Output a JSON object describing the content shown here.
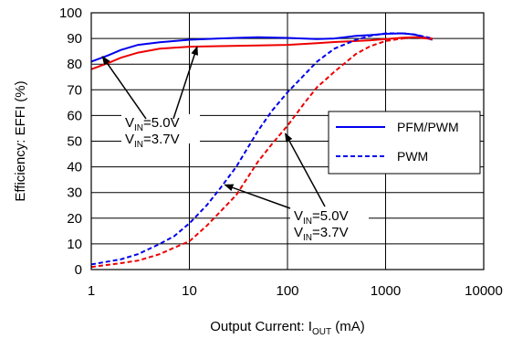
{
  "chart_data": {
    "type": "line",
    "x_scale": "log",
    "xlim": [
      1,
      10000
    ],
    "ylim": [
      0,
      100
    ],
    "grid": true,
    "xticks": [
      "1",
      "10",
      "100",
      "1000",
      "10000"
    ],
    "yticks": [
      "0",
      "10",
      "20",
      "30",
      "40",
      "50",
      "60",
      "70",
      "80",
      "90",
      "100"
    ],
    "xlabel": {
      "main": "Output Current: I",
      "sub": "OUT",
      "unit": " (mA)"
    },
    "ylabel": "Efficiency: EFFI (%)",
    "legend": {
      "placement": "right",
      "entries": [
        {
          "label": "PFM/PWM",
          "style": "solid"
        },
        {
          "label": "PWM",
          "style": "dashed"
        }
      ]
    },
    "series": [
      {
        "mode": "PFM/PWM",
        "vin": "5.0V",
        "color": "#0000ee",
        "style": "solid",
        "x": [
          1,
          1.5,
          2,
          3,
          5,
          10,
          20,
          50,
          100,
          200,
          300,
          500,
          700,
          1000,
          1500,
          2000,
          3000
        ],
        "y": [
          81,
          83.5,
          85.5,
          87.5,
          88.5,
          89.5,
          90,
          90.5,
          90.2,
          89.8,
          90,
          91,
          91.3,
          91.8,
          92,
          91.5,
          89.5
        ]
      },
      {
        "mode": "PFM/PWM",
        "vin": "3.7V",
        "color": "#ee0000",
        "style": "solid",
        "x": [
          1,
          1.5,
          2,
          3,
          5,
          10,
          20,
          50,
          100,
          200,
          300,
          500,
          700,
          1000,
          1500,
          2000,
          3000
        ],
        "y": [
          78,
          80.5,
          82.5,
          84.5,
          86,
          86.8,
          87,
          87.3,
          87.5,
          88.2,
          88.6,
          89,
          89.3,
          89.8,
          90.3,
          90.5,
          89.8
        ]
      },
      {
        "mode": "PWM",
        "vin": "5.0V",
        "color": "#0000ee",
        "style": "dashed",
        "x": [
          1,
          2,
          3,
          5,
          7,
          10,
          15,
          20,
          30,
          50,
          70,
          100,
          150,
          200,
          300,
          500,
          700,
          1000,
          1500,
          2000,
          3000
        ],
        "y": [
          2,
          4,
          6,
          10,
          13,
          18,
          25,
          31,
          40,
          54,
          62,
          69,
          76,
          81,
          86,
          89.5,
          91,
          92,
          92,
          91.5,
          90
        ]
      },
      {
        "mode": "PWM",
        "vin": "3.7V",
        "color": "#ee0000",
        "style": "dashed",
        "x": [
          1,
          2,
          3,
          5,
          7,
          10,
          15,
          20,
          30,
          50,
          70,
          100,
          150,
          200,
          300,
          500,
          700,
          1000,
          1500,
          2000,
          3000
        ],
        "y": [
          1,
          2.5,
          3.5,
          6,
          8.5,
          11,
          17,
          22,
          29,
          42,
          49,
          56,
          65,
          71,
          77,
          84,
          87,
          89,
          90,
          90.5,
          90
        ]
      }
    ],
    "annotations": [
      {
        "lines": [
          {
            "main": "V",
            "sub": "IN",
            "rest": "=5.0V"
          },
          {
            "main": "V",
            "sub": "IN",
            "rest": "=3.7V"
          }
        ],
        "arrow_targets": [
          {
            "x": 1.3,
            "y": 83
          },
          {
            "x": 12,
            "y": 86.8
          }
        ]
      },
      {
        "lines": [
          {
            "main": "V",
            "sub": "IN",
            "rest": "=5.0V"
          },
          {
            "main": "V",
            "sub": "IN",
            "rest": "=3.7V"
          }
        ],
        "arrow_targets": [
          {
            "x": 23,
            "y": 33
          },
          {
            "x": 95,
            "y": 53
          }
        ]
      }
    ]
  }
}
